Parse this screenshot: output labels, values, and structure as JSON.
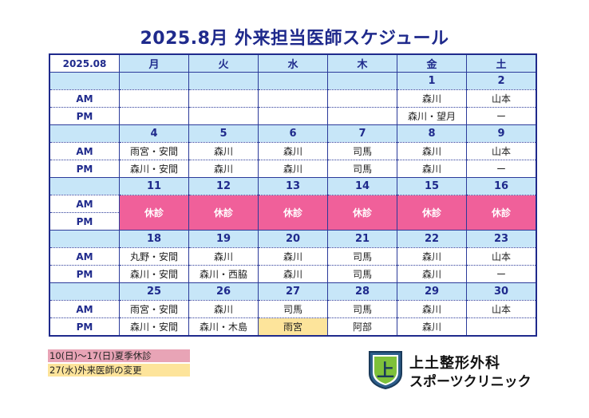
{
  "title": "2025.8月 外来担当医師スケジュール",
  "corner_label": "2025.08",
  "weekdays": [
    "月",
    "火",
    "水",
    "木",
    "金",
    "土"
  ],
  "weeks": [
    {
      "dates": [
        "",
        "",
        "",
        "",
        "1",
        "2"
      ],
      "am": [
        "",
        "",
        "",
        "",
        "森川",
        "山本"
      ],
      "pm": [
        "",
        "",
        "",
        "",
        "森川・望月",
        "ー"
      ]
    },
    {
      "dates": [
        "4",
        "5",
        "6",
        "7",
        "8",
        "9"
      ],
      "am": [
        "雨宮・安間",
        "森川",
        "森川",
        "司馬",
        "森川",
        "山本"
      ],
      "pm": [
        "森川・安間",
        "森川",
        "森川",
        "司馬",
        "森川",
        "ー"
      ]
    },
    {
      "dates": [
        "11",
        "12",
        "13",
        "14",
        "15",
        "16"
      ],
      "closed": "休診"
    },
    {
      "dates": [
        "18",
        "19",
        "20",
        "21",
        "22",
        "23"
      ],
      "am": [
        "丸野・安間",
        "森川",
        "森川",
        "司馬",
        "森川",
        "山本"
      ],
      "pm": [
        "森川・安間",
        "森川・西脇",
        "森川",
        "司馬",
        "森川",
        "ー"
      ]
    },
    {
      "dates": [
        "25",
        "26",
        "27",
        "28",
        "29",
        "30"
      ],
      "am": [
        "雨宮・安間",
        "森川",
        "司馬",
        "司馬",
        "森川",
        "山本"
      ],
      "pm": [
        "森川・安間",
        "森川・木島",
        "雨宮",
        "阿部",
        "森川",
        ""
      ]
    }
  ],
  "am_label": "AM",
  "pm_label": "PM",
  "legend": {
    "closed_note": "10(日)～17(日)夏季休診",
    "change_note": "27(水)外来医師の変更"
  },
  "logo": {
    "line1": "上土整形外科",
    "line2": "スポーツクリニック",
    "mark_char": "上"
  },
  "colors": {
    "navy": "#1f2a8c",
    "header_bg": "#c7e6f8",
    "closed_bg": "#f0609a",
    "change_bg": "#fde49b",
    "legend_pink": "#e8a4b6"
  }
}
